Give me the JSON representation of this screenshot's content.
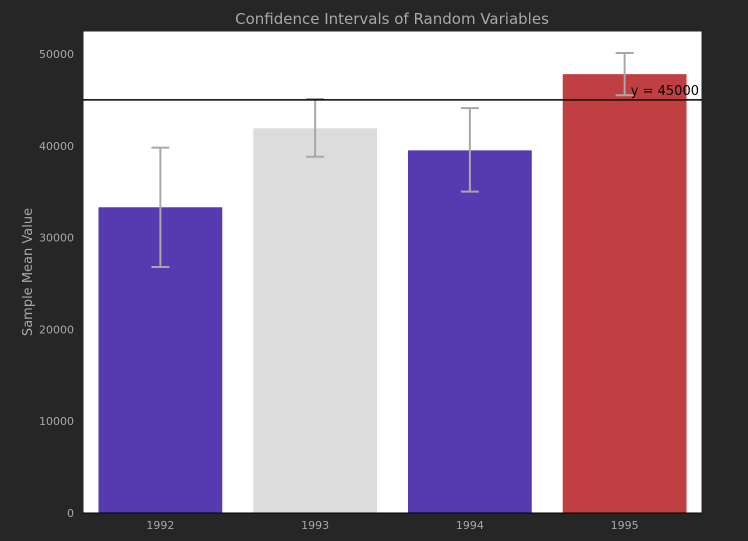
{
  "chart_data": {
    "type": "bar",
    "title": "Confidence Intervals of Random Variables",
    "xlabel": "",
    "ylabel": "Sample Mean Value",
    "categories": [
      "1992",
      "1993",
      "1994",
      "1995"
    ],
    "values": [
      33300,
      41900,
      39500,
      47800
    ],
    "error_low": [
      26800,
      38800,
      35000,
      45500
    ],
    "error_high": [
      39800,
      45100,
      44100,
      50100
    ],
    "bar_colors": [
      "#553ab0",
      "#dcdcdc",
      "#553ab0",
      "#bf3f43"
    ],
    "error_color": "#a8a8a8",
    "ylim": [
      0,
      52500
    ],
    "yticks": [
      0,
      10000,
      20000,
      30000,
      40000,
      50000
    ],
    "grid": false,
    "reference_line": {
      "value": 45000,
      "label": "y = 45000",
      "color": "#000000"
    }
  }
}
